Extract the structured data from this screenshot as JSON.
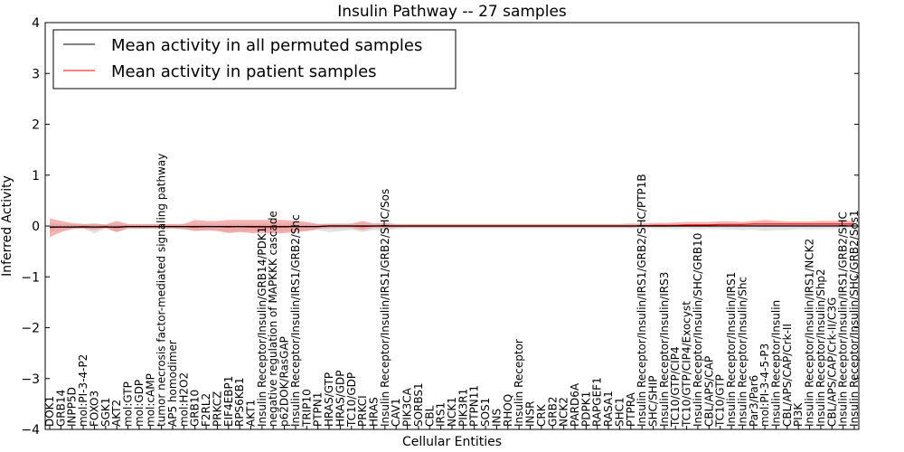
{
  "chart_data": {
    "type": "line",
    "title": "Insulin Pathway -- 27 samples",
    "xlabel": "Cellular Entities",
    "ylabel": "Inferred Activity",
    "ylim": [
      -4,
      4
    ],
    "yticks": [
      "−4",
      "−3",
      "−2",
      "−1",
      "0",
      "1",
      "2",
      "3",
      "4"
    ],
    "grid": false,
    "legend_position": "top-left",
    "colors": {
      "permuted": "#000000",
      "patient": "#ff0000",
      "patient_band": "#f08080",
      "permuted_band": "#c8c8c8",
      "zero_line": "#999999"
    },
    "categories": [
      "DOK1",
      "GRB14",
      "INPP5D",
      "mol:PI-3-4-P2",
      "FOXO3",
      "SGK1",
      "AKT2",
      "mol:GTP",
      "mol:GDP",
      "mol:cAMP",
      "tumor necrosis factor-mediated signaling pathway",
      "AP5 homodimer",
      "mol:H2O2",
      "GRB10",
      "F2RL2",
      "PRKCZ",
      "EIF4EBP1",
      "RPS6KB1",
      "AKT1",
      "Insulin Receptor/Insulin/GRB14/PDK1",
      "negative regulation of MAPKKK cascade",
      "p62DOK/RasGAP",
      "Insulin Receptor/Insulin/IRS1/GRB2/Shc",
      "TRIP10",
      "PTPN1",
      "HRAS/GTP",
      "HRAS/GDP",
      "TC10/GDP",
      "PRKCI",
      "HRAS",
      "Insulin Receptor/Insulin/IRS1/GRB2/SHC/Sos",
      "CAV1",
      "PIK3CA",
      "SORBS1",
      "CBL",
      "IRS1",
      "NCK1",
      "PIK3R1",
      "PTPN11",
      "SOS1",
      "INS",
      "RHOQ",
      "Insulin Receptor",
      "INSR",
      "CRK",
      "GRB2",
      "NCK2",
      "PARD6A",
      "PDPK1",
      "RAPGEF1",
      "RASA1",
      "SHC1",
      "PTPRA",
      "Insulin Receptor/Insulin/IRS1/GRB2/SHC/PTP1B",
      "SHC/SHIP",
      "Insulin Receptor/Insulin/IRS3",
      "TC10/GTP/CIP4",
      "TC10/GTP/CIP4/Exocyst",
      "Insulin Receptor/Insulin/SHC/GRB10",
      "CBL/APS/CAP",
      "TC10/GTP",
      "Insulin Receptor/Insulin/IRS1",
      "Insulin Receptor/Insulin/Shc",
      "Par3/Par6",
      "mol:PI-3-4-5-P3",
      "Insulin Receptor/Insulin",
      "CBL/APS/CAP/Crk-II",
      "PI3K",
      "Insulin Receptor/Insulin/IRS1/NCK2",
      "Insulin Receptor/Insulin/Shp2",
      "CBL/APS/CAP/Crk-II/C3G",
      "Insulin Receptor/Insulin/IRS1/GRB2/SHC",
      "Insulin Receptor/Insulin/SHC/GRB2/Sos1"
    ],
    "series": [
      {
        "name": "Mean activity in all permuted samples",
        "values": [
          -0.02,
          -0.02,
          -0.02,
          -0.02,
          -0.02,
          -0.02,
          -0.02,
          -0.01,
          -0.01,
          -0.01,
          -0.01,
          -0.01,
          -0.01,
          -0.01,
          -0.01,
          -0.01,
          -0.01,
          -0.01,
          -0.01,
          -0.01,
          -0.01,
          -0.01,
          -0.01,
          -0.01,
          -0.01,
          0.0,
          0.0,
          0.0,
          0.0,
          0.0,
          0.0,
          0.0,
          0.0,
          0.0,
          0.0,
          0.0,
          0.0,
          0.0,
          0.0,
          0.0,
          0.0,
          0.0,
          0.0,
          0.0,
          0.0,
          0.0,
          0.0,
          0.0,
          0.0,
          0.0,
          0.0,
          0.0,
          0.0,
          0.0,
          0.0,
          0.0,
          0.0,
          0.0,
          0.0,
          0.0,
          0.0,
          0.0,
          0.0,
          0.0,
          0.0,
          0.0,
          0.0,
          0.0,
          0.0,
          0.0,
          0.0,
          0.0,
          0.0
        ],
        "lower": [
          -0.12,
          -0.08,
          -0.06,
          -0.05,
          -0.15,
          -0.05,
          -0.12,
          -0.05,
          -0.06,
          -0.05,
          -0.06,
          -0.05,
          -0.07,
          -0.08,
          -0.1,
          -0.08,
          -0.12,
          -0.1,
          -0.1,
          -0.1,
          -0.12,
          -0.1,
          -0.1,
          -0.1,
          -0.08,
          -0.12,
          -0.1,
          -0.08,
          -0.12,
          -0.08,
          -0.1,
          -0.06,
          -0.05,
          -0.05,
          -0.05,
          -0.05,
          -0.05,
          -0.05,
          -0.05,
          -0.05,
          -0.05,
          -0.05,
          -0.05,
          -0.05,
          -0.05,
          -0.05,
          -0.05,
          -0.05,
          -0.05,
          -0.05,
          -0.05,
          -0.05,
          -0.05,
          -0.05,
          -0.05,
          -0.05,
          -0.06,
          -0.05,
          -0.07,
          -0.05,
          -0.06,
          -0.07,
          -0.08,
          -0.07,
          -0.1,
          -0.08,
          -0.08,
          -0.06,
          -0.07,
          -0.06,
          -0.06,
          -0.05,
          -0.04
        ],
        "upper": [
          0.05,
          0.04,
          0.04,
          0.03,
          0.06,
          0.03,
          0.05,
          0.03,
          0.03,
          0.03,
          0.03,
          0.03,
          0.04,
          0.04,
          0.05,
          0.04,
          0.05,
          0.05,
          0.05,
          0.05,
          0.05,
          0.05,
          0.05,
          0.05,
          0.04,
          0.05,
          0.05,
          0.04,
          0.06,
          0.04,
          0.05,
          0.03,
          0.03,
          0.03,
          0.03,
          0.03,
          0.03,
          0.03,
          0.03,
          0.03,
          0.03,
          0.03,
          0.03,
          0.03,
          0.03,
          0.03,
          0.03,
          0.03,
          0.03,
          0.03,
          0.03,
          0.03,
          0.03,
          0.03,
          0.03,
          0.03,
          0.04,
          0.03,
          0.04,
          0.03,
          0.03,
          0.04,
          0.05,
          0.04,
          0.05,
          0.05,
          0.05,
          0.04,
          0.04,
          0.04,
          0.04,
          0.03,
          0.03
        ]
      },
      {
        "name": "Mean activity in patient samples",
        "values": [
          -0.03,
          -0.02,
          -0.02,
          -0.01,
          -0.02,
          -0.01,
          -0.03,
          -0.01,
          -0.01,
          -0.01,
          -0.01,
          -0.01,
          -0.01,
          -0.02,
          -0.01,
          -0.01,
          -0.02,
          -0.01,
          -0.02,
          -0.02,
          -0.02,
          -0.02,
          -0.01,
          -0.01,
          -0.01,
          0.0,
          0.0,
          0.0,
          -0.01,
          0.0,
          0.0,
          0.0,
          0.0,
          0.0,
          0.0,
          0.0,
          0.0,
          0.0,
          0.0,
          0.0,
          0.0,
          0.0,
          0.0,
          0.0,
          0.0,
          0.0,
          0.0,
          0.0,
          0.0,
          0.0,
          0.0,
          0.0,
          0.0,
          0.0,
          0.01,
          0.01,
          0.01,
          0.02,
          0.02,
          0.02,
          0.03,
          0.03,
          0.03,
          0.04,
          0.04,
          0.04,
          0.04,
          0.04,
          0.04,
          0.04,
          0.04,
          0.04,
          0.04
        ],
        "lower": [
          -0.22,
          -0.12,
          -0.06,
          -0.05,
          -0.08,
          -0.04,
          -0.12,
          -0.05,
          -0.05,
          -0.05,
          -0.05,
          -0.05,
          -0.06,
          -0.1,
          -0.08,
          -0.1,
          -0.14,
          -0.12,
          -0.14,
          -0.14,
          -0.15,
          -0.14,
          -0.12,
          -0.1,
          -0.06,
          -0.05,
          -0.04,
          -0.04,
          -0.08,
          -0.04,
          -0.05,
          -0.03,
          -0.03,
          -0.03,
          -0.03,
          -0.03,
          -0.03,
          -0.03,
          -0.03,
          -0.03,
          -0.03,
          -0.03,
          -0.03,
          -0.03,
          -0.03,
          -0.03,
          -0.03,
          -0.03,
          -0.03,
          -0.03,
          -0.03,
          -0.03,
          -0.03,
          -0.02,
          -0.02,
          -0.02,
          -0.01,
          -0.01,
          -0.01,
          0.0,
          0.0,
          0.0,
          0.0,
          0.0,
          -0.01,
          0.0,
          0.0,
          0.0,
          0.0,
          0.01,
          0.01,
          0.01,
          0.01
        ],
        "upper": [
          0.15,
          0.1,
          0.06,
          0.04,
          0.04,
          0.03,
          0.1,
          0.04,
          0.04,
          0.04,
          0.04,
          0.04,
          0.04,
          0.12,
          0.1,
          0.1,
          0.12,
          0.12,
          0.12,
          0.12,
          0.12,
          0.12,
          0.1,
          0.08,
          0.04,
          0.04,
          0.04,
          0.05,
          0.1,
          0.05,
          0.06,
          0.04,
          0.04,
          0.04,
          0.04,
          0.04,
          0.04,
          0.04,
          0.04,
          0.04,
          0.04,
          0.04,
          0.04,
          0.04,
          0.04,
          0.04,
          0.04,
          0.04,
          0.04,
          0.04,
          0.04,
          0.04,
          0.05,
          0.05,
          0.06,
          0.06,
          0.07,
          0.08,
          0.08,
          0.08,
          0.09,
          0.09,
          0.08,
          0.1,
          0.12,
          0.1,
          0.09,
          0.09,
          0.09,
          0.1,
          0.1,
          0.1,
          0.1
        ]
      }
    ]
  }
}
